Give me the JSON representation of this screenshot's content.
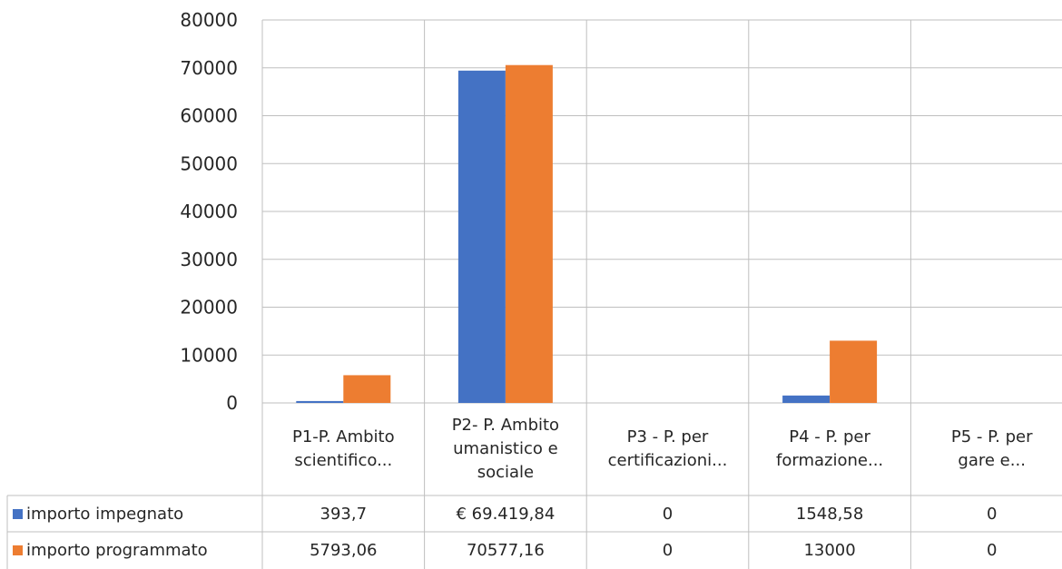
{
  "chart_data": {
    "type": "bar",
    "categories": [
      "P1-P. Ambito scientifico...",
      "P2- P. Ambito umanistico e sociale",
      "P3 - P. per certificazioni...",
      "P4 - P. per formazione...",
      "P5 - P. per gare e..."
    ],
    "category_lines": [
      [
        "P1-P. Ambito",
        "scientifico..."
      ],
      [
        "P2- P. Ambito",
        "umanistico e",
        "sociale"
      ],
      [
        "P3 - P. per",
        "certificazioni..."
      ],
      [
        "P4 - P. per",
        "formazione..."
      ],
      [
        "P5 - P. per",
        "gare e..."
      ]
    ],
    "series": [
      {
        "name": "importo impegnato",
        "color": "#4472C4",
        "values": [
          393.7,
          69419.84,
          0,
          1548.58,
          0
        ],
        "labels": [
          "393,7",
          "€ 69.419,84",
          "0",
          "1548,58",
          "0"
        ]
      },
      {
        "name": "importo programmato",
        "color": "#ED7D31",
        "values": [
          5793.06,
          70577.16,
          0,
          13000,
          0
        ],
        "labels": [
          "5793,06",
          "70577,16",
          "0",
          "13000",
          "0"
        ]
      }
    ],
    "yticks": [
      "0",
      "10000",
      "20000",
      "30000",
      "40000",
      "50000",
      "60000",
      "70000",
      "80000"
    ],
    "ylim": [
      0,
      80000
    ],
    "grid": true,
    "legend": "data-table",
    "title": "",
    "xlabel": "",
    "ylabel": ""
  }
}
